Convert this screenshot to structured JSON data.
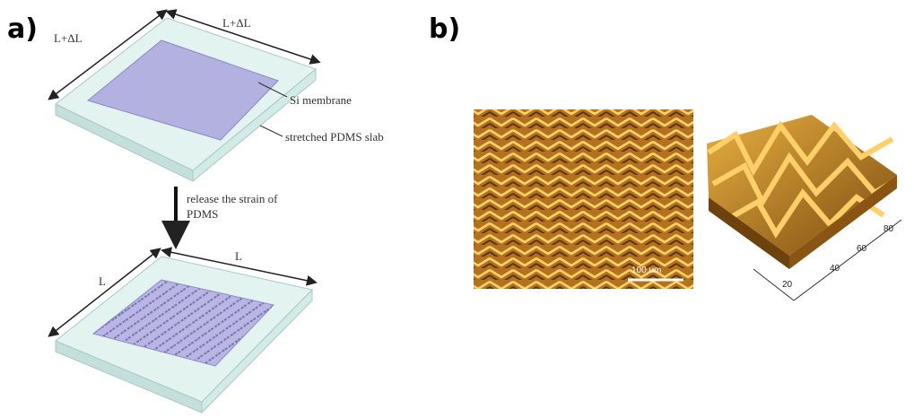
{
  "panel_a": {
    "label": "a)",
    "top_dim_left": "L+ΔL",
    "top_dim_right": "L+ΔL",
    "membrane_label": "Si membrane",
    "slab_label": "stretched PDMS slab",
    "step_label": [
      "release the strain of",
      "PDMS"
    ],
    "bottom_dim_left": "L",
    "bottom_dim_right": "L"
  },
  "panel_b": {
    "label": "b)",
    "scale_bar": "100 um",
    "axis_ticks": [
      "20",
      "40",
      "60",
      "80"
    ]
  }
}
